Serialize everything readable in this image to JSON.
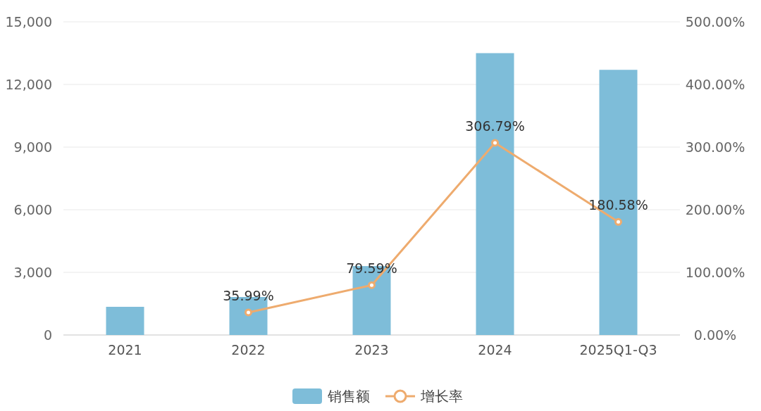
{
  "chart_data": {
    "type": "bar",
    "categories": [
      "2021",
      "2022",
      "2023",
      "2024",
      "2025Q1-Q3"
    ],
    "series": [
      {
        "name": "销售额",
        "color": "#7ebdd9",
        "values": [
          1350,
          1820,
          3300,
          13500,
          12700
        ]
      },
      {
        "name": "增长率",
        "type": "line",
        "axis": "y2",
        "color": "#eeab6e",
        "marker": "circle",
        "values": [
          null,
          35.99,
          79.59,
          306.79,
          180.58
        ],
        "value_labels": [
          null,
          "35.99%",
          "79.59%",
          "306.79%",
          "180.58%"
        ]
      }
    ],
    "ylim": [
      0,
      15000
    ],
    "yticks": [
      0,
      {
        "value": 3000,
        "label": "3,000"
      },
      {
        "value": 6000,
        "label": "6,000"
      },
      {
        "value": 9000,
        "label": "9,000"
      },
      {
        "value": 12000,
        "label": "12,000"
      },
      {
        "value": 15000,
        "label": "15,000"
      }
    ],
    "y2lim": [
      0,
      500
    ],
    "y2ticks": [
      {
        "value": 0,
        "label": "0.00%"
      },
      {
        "value": 100,
        "label": "100.00%"
      },
      {
        "value": 200,
        "label": "200.00%"
      },
      {
        "value": 300,
        "label": "300.00%"
      },
      {
        "value": 400,
        "label": "400.00%"
      },
      {
        "value": 500,
        "label": "500.00%"
      }
    ],
    "grid": "y",
    "legend": "bottom"
  }
}
